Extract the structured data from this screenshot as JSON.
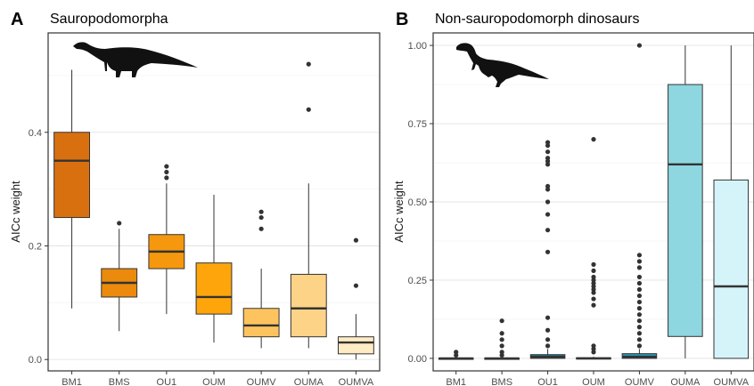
{
  "chart_data": [
    {
      "type": "box",
      "panel_label": "A",
      "title": "Sauropodomorpha",
      "xlabel": "",
      "ylabel": "AICc weight",
      "ylim": [
        -0.02,
        0.575
      ],
      "yticks": [
        0.0,
        0.2,
        0.4
      ],
      "ytick_labels": [
        "0.0",
        "0.2",
        "0.4"
      ],
      "grid": true,
      "legend": "none",
      "categories": [
        "BM1",
        "BMS",
        "OU1",
        "OUM",
        "OUMV",
        "OUMA",
        "OUMVA"
      ],
      "boxes": [
        {
          "category": "BM1",
          "color": "#D97010",
          "whisker_low": 0.09,
          "q1": 0.25,
          "median": 0.35,
          "q3": 0.4,
          "whisker_high": 0.51,
          "outliers": []
        },
        {
          "category": "BMS",
          "color": "#EB8A0C",
          "whisker_low": 0.05,
          "q1": 0.11,
          "median": 0.135,
          "q3": 0.16,
          "whisker_high": 0.23,
          "outliers": [
            0.24
          ]
        },
        {
          "category": "OU1",
          "color": "#F5980E",
          "whisker_low": 0.08,
          "q1": 0.16,
          "median": 0.19,
          "q3": 0.22,
          "whisker_high": 0.31,
          "outliers": [
            0.32,
            0.33,
            0.34
          ]
        },
        {
          "category": "OUM",
          "color": "#FFA50C",
          "whisker_low": 0.03,
          "q1": 0.08,
          "median": 0.11,
          "q3": 0.17,
          "whisker_high": 0.29,
          "outliers": []
        },
        {
          "category": "OUMV",
          "color": "#FDC35E",
          "whisker_low": 0.02,
          "q1": 0.04,
          "median": 0.06,
          "q3": 0.09,
          "whisker_high": 0.16,
          "outliers": [
            0.23,
            0.25,
            0.26
          ]
        },
        {
          "category": "OUMA",
          "color": "#FDD387",
          "whisker_low": 0.02,
          "q1": 0.04,
          "median": 0.09,
          "q3": 0.15,
          "whisker_high": 0.31,
          "outliers": [
            0.44,
            0.52
          ]
        },
        {
          "category": "OUMVA",
          "color": "#FFEBC4",
          "whisker_low": 0.0,
          "q1": 0.01,
          "median": 0.03,
          "q3": 0.04,
          "whisker_high": 0.08,
          "outliers": [
            0.13,
            0.21
          ]
        }
      ]
    },
    {
      "type": "box",
      "panel_label": "B",
      "title": "Non-sauropodomorph dinosaurs",
      "xlabel": "",
      "ylabel": "AICc weight",
      "ylim": [
        -0.04,
        1.04
      ],
      "yticks": [
        0.0,
        0.25,
        0.5,
        0.75,
        1.0
      ],
      "ytick_labels": [
        "0.00",
        "0.25",
        "0.50",
        "0.75",
        "1.00"
      ],
      "grid": true,
      "legend": "none",
      "categories": [
        "BM1",
        "BMS",
        "OU1",
        "OUM",
        "OUMV",
        "OUMA",
        "OUMVA"
      ],
      "boxes": [
        {
          "category": "BM1",
          "color": "#1A5A78",
          "whisker_low": 0.0,
          "q1": 0.0,
          "median": 0.0,
          "q3": 0.001,
          "whisker_high": 0.002,
          "outliers": [
            0.01,
            0.02
          ]
        },
        {
          "category": "BMS",
          "color": "#1C6A88",
          "whisker_low": 0.0,
          "q1": 0.0,
          "median": 0.0,
          "q3": 0.001,
          "whisker_high": 0.002,
          "outliers": [
            0.01,
            0.02,
            0.04,
            0.06,
            0.08,
            0.12
          ]
        },
        {
          "category": "OU1",
          "color": "#1E7A97",
          "whisker_low": 0.0,
          "q1": 0.0,
          "median": 0.005,
          "q3": 0.012,
          "whisker_high": 0.03,
          "outliers": [
            0.04,
            0.06,
            0.09,
            0.13,
            0.34,
            0.41,
            0.46,
            0.5,
            0.54,
            0.55,
            0.62,
            0.63,
            0.64,
            0.66,
            0.68,
            0.69
          ]
        },
        {
          "category": "OUM",
          "color": "#2188A5",
          "whisker_low": 0.0,
          "q1": 0.0,
          "median": 0.0,
          "q3": 0.002,
          "whisker_high": 0.005,
          "outliers": [
            0.02,
            0.03,
            0.04,
            0.17,
            0.19,
            0.21,
            0.22,
            0.23,
            0.24,
            0.25,
            0.26,
            0.28,
            0.3,
            0.7
          ]
        },
        {
          "category": "OUMV",
          "color": "#2595B0",
          "whisker_low": 0.0,
          "q1": 0.0,
          "median": 0.005,
          "q3": 0.015,
          "whisker_high": 0.03,
          "outliers": [
            0.04,
            0.06,
            0.08,
            0.1,
            0.12,
            0.14,
            0.16,
            0.18,
            0.2,
            0.22,
            0.24,
            0.26,
            0.29,
            0.31,
            0.33,
            1.0
          ]
        },
        {
          "category": "OUMA",
          "color": "#8ED6E0",
          "whisker_low": 0.0,
          "q1": 0.07,
          "median": 0.62,
          "q3": 0.875,
          "whisker_high": 1.0,
          "outliers": []
        },
        {
          "category": "OUMVA",
          "color": "#D5F4FA",
          "whisker_low": 0.0,
          "q1": 0.0,
          "median": 0.23,
          "q3": 0.57,
          "whisker_high": 1.0,
          "outliers": []
        }
      ]
    }
  ],
  "silhouettes": [
    "sauropodomorph-silhouette",
    "theropod-silhouette"
  ]
}
